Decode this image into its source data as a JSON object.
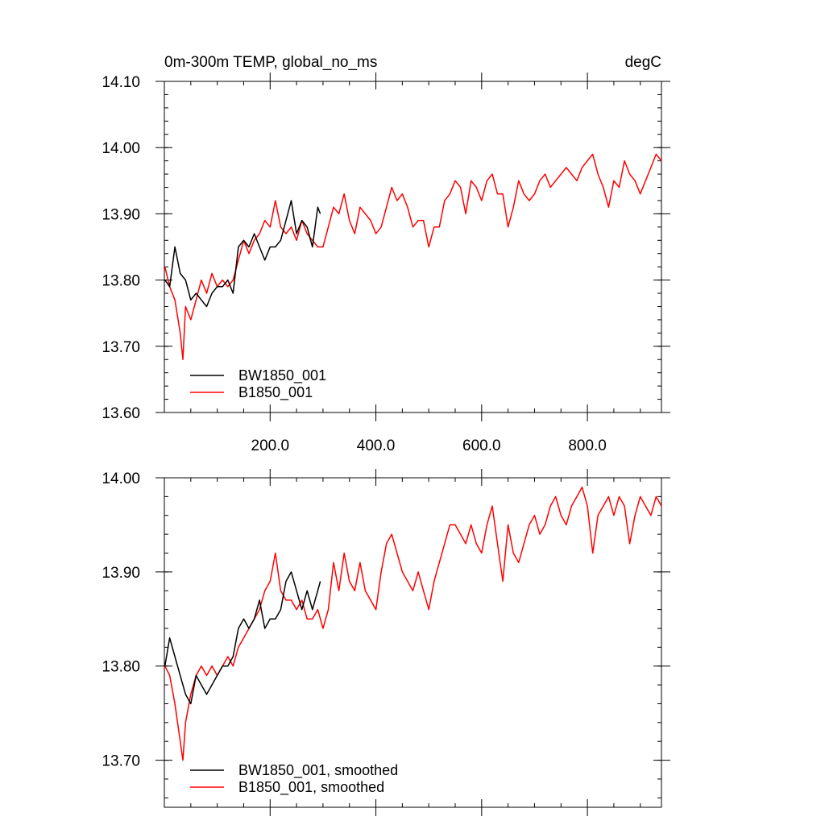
{
  "figure_title_left": "0m-300m TEMP, global_no_ms",
  "figure_title_right": "degC",
  "chart_data": [
    {
      "type": "line",
      "title": "0m-300m TEMP, global_no_ms",
      "units": "degC",
      "xlim": [
        0,
        940
      ],
      "ylim": [
        13.6,
        14.1
      ],
      "yticks": [
        13.6,
        13.7,
        13.8,
        13.9,
        14.0,
        14.1
      ],
      "ytick_labels": [
        "13.60",
        "13.70",
        "13.80",
        "13.90",
        "14.00",
        "14.10"
      ],
      "xticks": [
        200,
        400,
        600,
        800
      ],
      "xtick_labels": [
        "200.0",
        "400.0",
        "600.0",
        "800.0"
      ],
      "series": [
        {
          "name": "BW1850_001",
          "color": "#000000",
          "x": [
            1,
            10,
            20,
            30,
            40,
            50,
            60,
            70,
            80,
            90,
            100,
            110,
            120,
            130,
            140,
            150,
            160,
            170,
            180,
            190,
            200,
            210,
            220,
            230,
            240,
            250,
            260,
            270,
            280,
            290,
            295
          ],
          "y": [
            13.8,
            13.79,
            13.85,
            13.81,
            13.8,
            13.77,
            13.78,
            13.77,
            13.76,
            13.78,
            13.79,
            13.79,
            13.8,
            13.78,
            13.85,
            13.86,
            13.85,
            13.87,
            13.85,
            13.83,
            13.85,
            13.85,
            13.86,
            13.89,
            13.92,
            13.87,
            13.89,
            13.88,
            13.85,
            13.91,
            13.9
          ]
        },
        {
          "name": "B1850_001",
          "color": "#ff0000",
          "x": [
            1,
            10,
            20,
            30,
            35,
            40,
            50,
            60,
            70,
            80,
            90,
            100,
            110,
            120,
            130,
            140,
            150,
            160,
            170,
            180,
            190,
            200,
            210,
            220,
            230,
            240,
            250,
            260,
            270,
            280,
            290,
            300,
            310,
            320,
            330,
            340,
            350,
            360,
            370,
            380,
            390,
            400,
            410,
            420,
            430,
            440,
            450,
            460,
            470,
            480,
            490,
            500,
            510,
            520,
            530,
            540,
            550,
            560,
            570,
            580,
            590,
            600,
            610,
            620,
            630,
            640,
            650,
            660,
            670,
            680,
            690,
            700,
            710,
            720,
            730,
            740,
            750,
            760,
            770,
            780,
            790,
            800,
            810,
            820,
            830,
            840,
            850,
            860,
            870,
            880,
            890,
            900,
            910,
            920,
            930,
            940
          ],
          "y": [
            13.82,
            13.79,
            13.77,
            13.72,
            13.68,
            13.76,
            13.74,
            13.77,
            13.8,
            13.78,
            13.81,
            13.79,
            13.8,
            13.79,
            13.8,
            13.83,
            13.86,
            13.84,
            13.86,
            13.87,
            13.89,
            13.88,
            13.92,
            13.88,
            13.87,
            13.88,
            13.86,
            13.89,
            13.87,
            13.86,
            13.85,
            13.85,
            13.88,
            13.91,
            13.9,
            13.93,
            13.89,
            13.87,
            13.91,
            13.9,
            13.89,
            13.87,
            13.88,
            13.91,
            13.94,
            13.92,
            13.93,
            13.91,
            13.88,
            13.89,
            13.89,
            13.85,
            13.88,
            13.88,
            13.92,
            13.93,
            13.95,
            13.94,
            13.9,
            13.95,
            13.94,
            13.92,
            13.95,
            13.96,
            13.93,
            13.93,
            13.88,
            13.91,
            13.95,
            13.93,
            13.92,
            13.93,
            13.95,
            13.96,
            13.94,
            13.95,
            13.96,
            13.97,
            13.96,
            13.95,
            13.97,
            13.98,
            13.99,
            13.96,
            13.94,
            13.91,
            13.95,
            13.94,
            13.98,
            13.96,
            13.95,
            13.93,
            13.95,
            13.97,
            13.99,
            13.98
          ]
        }
      ]
    },
    {
      "type": "line",
      "xlim": [
        0,
        940
      ],
      "ylim": [
        13.65,
        14.0
      ],
      "yticks": [
        13.7,
        13.8,
        13.9,
        14.0
      ],
      "ytick_labels": [
        "13.70",
        "13.80",
        "13.90",
        "14.00"
      ],
      "series": [
        {
          "name": "BW1850_001, smoothed",
          "color": "#000000",
          "x": [
            1,
            10,
            20,
            30,
            40,
            50,
            60,
            70,
            80,
            90,
            100,
            110,
            120,
            130,
            140,
            150,
            160,
            170,
            180,
            190,
            200,
            210,
            220,
            230,
            240,
            250,
            260,
            270,
            280,
            290,
            295
          ],
          "y": [
            13.8,
            13.83,
            13.81,
            13.79,
            13.77,
            13.76,
            13.79,
            13.78,
            13.77,
            13.78,
            13.79,
            13.8,
            13.8,
            13.81,
            13.84,
            13.85,
            13.84,
            13.85,
            13.87,
            13.84,
            13.85,
            13.85,
            13.86,
            13.89,
            13.9,
            13.88,
            13.86,
            13.88,
            13.86,
            13.88,
            13.89
          ]
        },
        {
          "name": "B1850_001, smoothed",
          "color": "#ff0000",
          "x": [
            1,
            10,
            20,
            30,
            35,
            40,
            50,
            60,
            70,
            80,
            90,
            100,
            110,
            120,
            130,
            140,
            150,
            160,
            170,
            180,
            190,
            200,
            210,
            220,
            230,
            240,
            250,
            260,
            270,
            280,
            290,
            300,
            310,
            320,
            330,
            340,
            350,
            360,
            370,
            380,
            390,
            400,
            410,
            420,
            430,
            440,
            450,
            460,
            470,
            480,
            490,
            500,
            510,
            520,
            530,
            540,
            550,
            560,
            570,
            580,
            590,
            600,
            610,
            620,
            630,
            640,
            650,
            660,
            670,
            680,
            690,
            700,
            710,
            720,
            730,
            740,
            750,
            760,
            770,
            780,
            790,
            800,
            810,
            820,
            830,
            840,
            850,
            860,
            870,
            880,
            890,
            900,
            910,
            920,
            930,
            940
          ],
          "y": [
            13.8,
            13.79,
            13.76,
            13.72,
            13.7,
            13.74,
            13.77,
            13.79,
            13.8,
            13.79,
            13.8,
            13.79,
            13.8,
            13.81,
            13.8,
            13.82,
            13.83,
            13.84,
            13.85,
            13.86,
            13.88,
            13.89,
            13.92,
            13.88,
            13.87,
            13.87,
            13.86,
            13.87,
            13.85,
            13.85,
            13.86,
            13.84,
            13.86,
            13.91,
            13.88,
            13.92,
            13.89,
            13.88,
            13.91,
            13.88,
            13.87,
            13.86,
            13.9,
            13.93,
            13.94,
            13.92,
            13.9,
            13.89,
            13.88,
            13.9,
            13.88,
            13.86,
            13.89,
            13.91,
            13.93,
            13.95,
            13.95,
            13.94,
            13.93,
            13.95,
            13.93,
            13.92,
            13.95,
            13.97,
            13.93,
            13.89,
            13.95,
            13.92,
            13.91,
            13.93,
            13.95,
            13.96,
            13.94,
            13.95,
            13.97,
            13.98,
            13.96,
            13.95,
            13.97,
            13.98,
            13.99,
            13.97,
            13.92,
            13.96,
            13.97,
            13.98,
            13.96,
            13.98,
            13.97,
            13.93,
            13.96,
            13.98,
            13.97,
            13.96,
            13.98,
            13.97
          ]
        }
      ]
    }
  ]
}
